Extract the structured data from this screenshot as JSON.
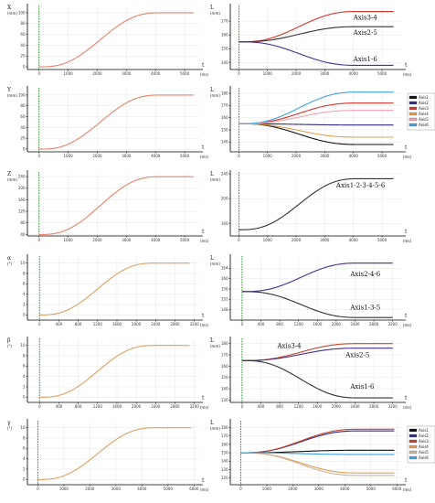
{
  "chart_data": [
    {
      "type": "line",
      "row": 0,
      "col": 0,
      "ylabel": "X",
      "yunit": "(mm)",
      "xlabel": "t",
      "xunit": "(ms)",
      "xlim": [
        -400,
        5500
      ],
      "ylim": [
        -5,
        110
      ],
      "xticks": [
        0,
        1000,
        2000,
        3000,
        4000,
        5000
      ],
      "yticks": [
        0,
        20,
        40,
        60,
        80,
        100
      ],
      "series": [
        {
          "color": "#e8826a",
          "x0": 0,
          "x1": 4200,
          "y0": 0,
          "y1": 100,
          "xend": 5300
        }
      ],
      "annotations": [],
      "legend": []
    },
    {
      "type": "line",
      "row": 0,
      "col": 1,
      "ylabel": "L",
      "yunit": "(mm)",
      "xlabel": "t",
      "xunit": "(ms)",
      "xlim": [
        -300,
        5700
      ],
      "ylim": [
        135,
        180
      ],
      "xticks": [
        0,
        1000,
        2000,
        3000,
        4000,
        5000
      ],
      "yticks": [
        140,
        150,
        160,
        170
      ],
      "series": [
        {
          "color": "#d9322b",
          "x0": 0,
          "x1": 4200,
          "y0": 155,
          "y1": 177,
          "xend": 5400
        },
        {
          "color": "#333333",
          "x0": 0,
          "x1": 4200,
          "y0": 155,
          "y1": 166,
          "xend": 5400
        },
        {
          "color": "#4a2f8f",
          "x0": 0,
          "x1": 4200,
          "y0": 155,
          "y1": 138,
          "xend": 5400
        }
      ],
      "annotations": [
        {
          "text": "Axis3-4",
          "x": 4000,
          "y": 171
        },
        {
          "text": "Axis2-5",
          "x": 4000,
          "y": 160
        },
        {
          "text": "Axis1-6",
          "x": 4000,
          "y": 141
        }
      ],
      "legend": []
    },
    {
      "type": "line",
      "row": 1,
      "col": 0,
      "ylabel": "Y",
      "yunit": "(mm)",
      "xlabel": "t",
      "xunit": "(ms)",
      "xlim": [
        -400,
        5500
      ],
      "ylim": [
        -5,
        110
      ],
      "xticks": [
        0,
        1000,
        2000,
        3000,
        4000,
        5000
      ],
      "yticks": [
        0,
        20,
        40,
        60,
        80,
        100
      ],
      "series": [
        {
          "color": "#e8826a",
          "x0": 0,
          "x1": 4200,
          "y0": 0,
          "y1": 100,
          "xend": 5300
        }
      ],
      "annotations": [],
      "legend": []
    },
    {
      "type": "line",
      "row": 1,
      "col": 1,
      "ylabel": "L",
      "yunit": "(mm)",
      "xlabel": "t",
      "xunit": "(ms)",
      "xlim": [
        -300,
        5700
      ],
      "ylim": [
        132,
        183
      ],
      "xticks": [
        0,
        1000,
        2000,
        3000,
        4000,
        5000
      ],
      "yticks": [
        140,
        150,
        160,
        170,
        180
      ],
      "series": [
        {
          "color": "#111111",
          "x0": 0,
          "x1": 4200,
          "y0": 155,
          "y1": 138,
          "xend": 5400
        },
        {
          "color": "#2e2b8a",
          "x0": 0,
          "x1": 4200,
          "y0": 155,
          "y1": 154,
          "xend": 5400
        },
        {
          "color": "#d9322b",
          "x0": 0,
          "x1": 4200,
          "y0": 155,
          "y1": 172,
          "xend": 5400
        },
        {
          "color": "#e0a050",
          "x0": 0,
          "x1": 4200,
          "y0": 155,
          "y1": 144,
          "xend": 5400
        },
        {
          "color": "#f1a1b0",
          "x0": 0,
          "x1": 4200,
          "y0": 155,
          "y1": 166,
          "xend": 5400
        },
        {
          "color": "#3fa3e0",
          "x0": 0,
          "x1": 4200,
          "y0": 155,
          "y1": 181,
          "xend": 5400
        }
      ],
      "annotations": [],
      "legend": [
        "Axis1",
        "Axis2",
        "Axis3",
        "Axis4",
        "Axis5",
        "Axis6"
      ]
    },
    {
      "type": "line",
      "row": 2,
      "col": 0,
      "ylabel": "Z",
      "yunit": "(mm)",
      "xlabel": "t",
      "xunit": "(ms)",
      "xlim": [
        -400,
        5500
      ],
      "ylim": [
        35,
        250
      ],
      "xticks": [
        0,
        1000,
        2000,
        3000,
        4000,
        5000
      ],
      "yticks": [
        40,
        80,
        120,
        160,
        200,
        240
      ],
      "series": [
        {
          "color": "#e8826a",
          "x0": 0,
          "x1": 4200,
          "y0": 40,
          "y1": 240,
          "xend": 5300
        }
      ],
      "annotations": [],
      "legend": []
    },
    {
      "type": "line",
      "row": 2,
      "col": 1,
      "ylabel": "L",
      "yunit": "(mm)",
      "xlabel": "t",
      "xunit": "(ms)",
      "xlim": [
        -300,
        5700
      ],
      "ylim": [
        140,
        240
      ],
      "xticks": [
        0,
        1000,
        2000,
        3000,
        4000,
        5000
      ],
      "yticks": [
        160,
        200,
        240
      ],
      "series": [
        {
          "color": "#333333",
          "x0": 0,
          "x1": 4200,
          "y0": 150,
          "y1": 232,
          "xend": 5400
        }
      ],
      "annotations": [
        {
          "text": "Axis1-2-3-4-5-6",
          "x": 3400,
          "y": 218
        }
      ],
      "legend": []
    },
    {
      "type": "line",
      "row": 3,
      "col": 0,
      "ylabel": "α",
      "yunit": "(°)",
      "xlabel": "t",
      "xunit": "(ms)",
      "xlim": [
        -250,
        3300
      ],
      "ylim": [
        -1,
        11
      ],
      "xticks": [
        0,
        400,
        800,
        1200,
        1600,
        2000,
        2400,
        2800,
        3200
      ],
      "yticks": [
        0,
        2,
        4,
        6,
        8,
        10
      ],
      "series": [
        {
          "color": "#e0a060",
          "x0": 0,
          "x1": 2400,
          "y0": 0,
          "y1": 10,
          "xend": 3100
        }
      ],
      "annotations": [],
      "legend": []
    },
    {
      "type": "line",
      "row": 3,
      "col": 1,
      "ylabel": "L",
      "yunit": "(mm)",
      "xlabel": "t",
      "xunit": "(ms)",
      "xlim": [
        -250,
        3400
      ],
      "ylim": [
        144,
        168
      ],
      "xticks": [
        0,
        400,
        800,
        1200,
        1600,
        2000,
        2400,
        2800,
        3200
      ],
      "yticks": [
        148,
        152,
        156,
        160,
        164
      ],
      "series": [
        {
          "color": "#4a2f8f",
          "x0": 0,
          "x1": 2500,
          "y0": 155,
          "y1": 166,
          "xend": 3200
        },
        {
          "color": "#333333",
          "x0": 0,
          "x1": 2500,
          "y0": 155,
          "y1": 145,
          "xend": 3200
        }
      ],
      "annotations": [
        {
          "text": "Axis2-4-6",
          "x": 2300,
          "y": 161
        },
        {
          "text": "Axis1-3-5",
          "x": 2300,
          "y": 148
        }
      ],
      "legend": []
    },
    {
      "type": "line",
      "row": 4,
      "col": 0,
      "ylabel": "β",
      "yunit": "(°)",
      "xlabel": "t",
      "xunit": "(ms)",
      "xlim": [
        -250,
        3300
      ],
      "ylim": [
        -1,
        11
      ],
      "xticks": [
        0,
        400,
        800,
        1200,
        1600,
        2000,
        2400,
        2800,
        3200
      ],
      "yticks": [
        0,
        2,
        4,
        6,
        8,
        10
      ],
      "series": [
        {
          "color": "#e0a060",
          "x0": 0,
          "x1": 2400,
          "y0": 0,
          "y1": 10,
          "xend": 3100
        }
      ],
      "annotations": [],
      "legend": []
    },
    {
      "type": "line",
      "row": 4,
      "col": 1,
      "ylabel": "L",
      "yunit": "(mm)",
      "xlabel": "t",
      "xunit": "(ms)",
      "xlim": [
        -250,
        3400
      ],
      "ylim": [
        128,
        183
      ],
      "xticks": [
        0,
        400,
        800,
        1200,
        1600,
        2000,
        2400,
        2800,
        3200
      ],
      "yticks": [
        130,
        140,
        150,
        160,
        170,
        180
      ],
      "series": [
        {
          "color": "#c0452a",
          "x0": 0,
          "x1": 2500,
          "y0": 165,
          "y1": 180,
          "xend": 3200
        },
        {
          "color": "#4a2f8f",
          "x0": 0,
          "x1": 2500,
          "y0": 165,
          "y1": 176,
          "xend": 3200
        },
        {
          "color": "#333333",
          "x0": 0,
          "x1": 2500,
          "y0": 165,
          "y1": 132,
          "xend": 3200
        }
      ],
      "annotations": [
        {
          "text": "Axis3-4",
          "x": 750,
          "y": 176
        },
        {
          "text": "Axis2-5",
          "x": 2200,
          "y": 168
        },
        {
          "text": "Axis1-6",
          "x": 2300,
          "y": 140
        }
      ],
      "legend": []
    },
    {
      "type": "line",
      "row": 5,
      "col": 0,
      "ylabel": "γ",
      "yunit": "(°)",
      "xlabel": "t",
      "xunit": "(ms)",
      "xlim": [
        -400,
        6200
      ],
      "ylim": [
        -1,
        11
      ],
      "xticks": [
        0,
        1000,
        2000,
        3000,
        4000,
        5000,
        6000
      ],
      "yticks": [
        0,
        2,
        4,
        6,
        8,
        10
      ],
      "series": [
        {
          "color": "#e0a060",
          "x0": 0,
          "x1": 4600,
          "y0": 0,
          "y1": 10,
          "xend": 5900
        }
      ],
      "annotations": [],
      "legend": []
    },
    {
      "type": "line",
      "row": 5,
      "col": 1,
      "ylabel": "L",
      "yunit": "(mm)",
      "xlabel": "t",
      "xunit": "(ms)",
      "xlim": [
        -400,
        6200
      ],
      "ylim": [
        112,
        186
      ],
      "xticks": [
        0,
        1000,
        2000,
        3000,
        4000,
        5000,
        6000
      ],
      "yticks": [
        120,
        130,
        140,
        150,
        160,
        170,
        180
      ],
      "series": [
        {
          "color": "#111111",
          "x0": 0,
          "x1": 4600,
          "y0": 150,
          "y1": 153,
          "xend": 5900
        },
        {
          "color": "#2e2b8a",
          "x0": 0,
          "x1": 4600,
          "y0": 150,
          "y1": 176,
          "xend": 5900
        },
        {
          "color": "#c0452a",
          "x0": 0,
          "x1": 4600,
          "y0": 150,
          "y1": 178,
          "xend": 5900
        },
        {
          "color": "#e0a050",
          "x0": 0,
          "x1": 4600,
          "y0": 150,
          "y1": 126,
          "xend": 5900
        },
        {
          "color": "#cdb5a0",
          "x0": 0,
          "x1": 4600,
          "y0": 150,
          "y1": 123,
          "xend": 5900
        },
        {
          "color": "#3fa3e0",
          "x0": 0,
          "x1": 4600,
          "y0": 150,
          "y1": 148,
          "xend": 5900
        }
      ],
      "annotations": [],
      "legend": [
        "Axis1",
        "Axis2",
        "Axis3",
        "Axis4",
        "Axis5",
        "Axis6"
      ]
    }
  ]
}
